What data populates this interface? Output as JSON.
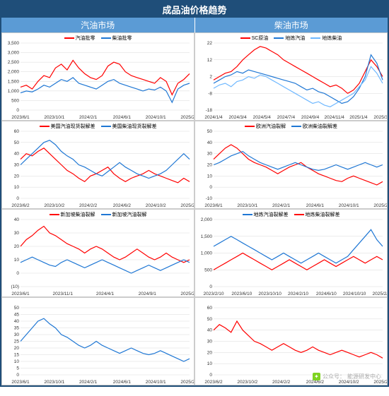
{
  "title": "成品油价格趋势",
  "left_header": "汽油市场",
  "right_header": "柴油市场",
  "colors": {
    "red": "#ff0000",
    "blue": "#1f77d4",
    "lightblue": "#6fb8ff",
    "grid": "#d9d9d9",
    "axis_text": "#333333",
    "panel_bg": "#ffffff"
  },
  "font": {
    "axis_pt": 6.5,
    "legend_pt": 7
  },
  "x_labels_a": [
    "2023/6/1",
    "2023/10/1",
    "2024/2/1",
    "2024/6/1",
    "2024/10/1",
    "2025/2/1"
  ],
  "x_labels_b": [
    "2024/1/4",
    "2024/3/4",
    "2024/5/4",
    "2024/7/4",
    "2024/9/4",
    "2024/11/4",
    "2025/1/4",
    "2025/3/4"
  ],
  "x_labels_c": [
    "2023/6/2",
    "2023/10/2",
    "2024/2/2",
    "2024/6/2",
    "2024/10/2",
    "2025/2/2"
  ],
  "x_labels_d": [
    "2023/6/1",
    "2023/10/1",
    "2024/2/1",
    "2024/6/1",
    "2024/10/1",
    "2025/2/1"
  ],
  "x_labels_e": [
    "2023/6/1",
    "2023/11/1",
    "2024/4/1",
    "2024/9/1",
    "2025/2/1"
  ],
  "x_labels_f": [
    "2023/2/10",
    "2023/6/10",
    "2023/10/10",
    "2024/2/10",
    "2024/6/10",
    "2024/10/10",
    "2025/2/10"
  ],
  "panels": [
    {
      "id": "p1",
      "ylim": [
        0,
        3500
      ],
      "ytick_step": 500,
      "x_labels_key": "x_labels_a",
      "series": [
        {
          "name": "汽油批零",
          "color_key": "red",
          "data": [
            1200,
            1300,
            1100,
            1500,
            1800,
            1700,
            2200,
            2400,
            2100,
            2600,
            2200,
            1900,
            1700,
            1600,
            1800,
            2300,
            2500,
            2400,
            2000,
            1800,
            1700,
            1600,
            1500,
            1400,
            1700,
            1500,
            800,
            1400,
            1600,
            1900
          ]
        },
        {
          "name": "柴油批零",
          "color_key": "blue",
          "data": [
            900,
            1000,
            950,
            1100,
            1300,
            1200,
            1400,
            1600,
            1500,
            1700,
            1400,
            1300,
            1200,
            1100,
            1300,
            1500,
            1600,
            1400,
            1300,
            1200,
            1100,
            1000,
            1100,
            1050,
            1200,
            1000,
            400,
            1100,
            1300,
            1400
          ]
        }
      ]
    },
    {
      "id": "p2",
      "ylim": [
        -18,
        22
      ],
      "ytick_step": 10,
      "yticks": [
        -18,
        -8,
        2,
        12,
        22
      ],
      "x_labels_key": "x_labels_b",
      "series": [
        {
          "name": "SC原油",
          "color_key": "red",
          "data": [
            0,
            2,
            4,
            5,
            8,
            12,
            15,
            18,
            20,
            19,
            17,
            15,
            12,
            10,
            8,
            6,
            4,
            2,
            0,
            -2,
            -4,
            -3,
            -5,
            -8,
            -6,
            -2,
            5,
            12,
            8,
            2
          ]
        },
        {
          "name": "地炼汽油",
          "color_key": "blue",
          "data": [
            -2,
            0,
            2,
            3,
            5,
            4,
            6,
            5,
            4,
            3,
            2,
            1,
            0,
            -1,
            -2,
            -4,
            -6,
            -5,
            -7,
            -8,
            -10,
            -12,
            -14,
            -13,
            -10,
            -5,
            2,
            15,
            10,
            0
          ]
        },
        {
          "name": "地炼柴油",
          "color_key": "lightblue",
          "data": [
            -5,
            -3,
            -2,
            -4,
            -1,
            0,
            2,
            1,
            3,
            2,
            0,
            -2,
            -4,
            -6,
            -8,
            -10,
            -12,
            -14,
            -13,
            -15,
            -16,
            -14,
            -12,
            -10,
            -8,
            -4,
            0,
            8,
            4,
            -2
          ]
        }
      ]
    },
    {
      "id": "p3",
      "ylim": [
        0,
        60
      ],
      "ytick_step": 10,
      "x_labels_key": "x_labels_c",
      "series": [
        {
          "name": "美国汽油现货裂解差",
          "color_key": "red",
          "data": [
            35,
            40,
            38,
            42,
            45,
            40,
            35,
            30,
            25,
            22,
            18,
            15,
            20,
            22,
            25,
            28,
            22,
            18,
            15,
            18,
            20,
            22,
            25,
            22,
            20,
            18,
            16,
            14,
            18,
            15
          ]
        },
        {
          "name": "美国柴油现货裂解差",
          "color_key": "blue",
          "data": [
            30,
            35,
            40,
            45,
            50,
            52,
            48,
            42,
            38,
            35,
            30,
            28,
            25,
            22,
            20,
            24,
            28,
            32,
            28,
            25,
            22,
            20,
            18,
            20,
            22,
            25,
            30,
            35,
            40,
            35
          ]
        }
      ]
    },
    {
      "id": "p4",
      "ylim": [
        -10,
        50
      ],
      "ytick_step": 10,
      "yticks": [
        -10,
        0,
        10,
        20,
        30,
        40,
        50
      ],
      "x_labels_key": "x_labels_d",
      "series": [
        {
          "name": "欧洲汽油裂解",
          "color_key": "red",
          "data": [
            25,
            30,
            35,
            38,
            35,
            30,
            25,
            22,
            20,
            18,
            15,
            12,
            15,
            18,
            20,
            22,
            18,
            15,
            12,
            10,
            8,
            6,
            5,
            8,
            10,
            8,
            6,
            4,
            2,
            5
          ]
        },
        {
          "name": "欧洲柴油裂解差",
          "color_key": "blue",
          "data": [
            20,
            22,
            25,
            28,
            30,
            32,
            28,
            25,
            22,
            20,
            18,
            16,
            18,
            20,
            22,
            20,
            18,
            16,
            15,
            16,
            18,
            20,
            18,
            16,
            18,
            20,
            22,
            20,
            18,
            20
          ]
        }
      ]
    },
    {
      "id": "p5",
      "ylim": [
        -10,
        40
      ],
      "ytick_step": 10,
      "yticks": [
        -10,
        0,
        10,
        20,
        30,
        40
      ],
      "neg_label": "(10)",
      "x_labels_key": "x_labels_e",
      "series": [
        {
          "name": "新加坡柴油裂解",
          "color_key": "red",
          "data": [
            20,
            25,
            28,
            32,
            35,
            30,
            28,
            25,
            22,
            20,
            18,
            15,
            18,
            20,
            18,
            15,
            12,
            10,
            12,
            15,
            18,
            15,
            12,
            10,
            12,
            15,
            12,
            10,
            8,
            10
          ]
        },
        {
          "name": "新加坡汽油裂解",
          "color_key": "blue",
          "data": [
            8,
            10,
            12,
            10,
            8,
            6,
            5,
            8,
            10,
            8,
            6,
            4,
            6,
            8,
            10,
            8,
            6,
            4,
            2,
            0,
            2,
            4,
            6,
            4,
            2,
            4,
            6,
            8,
            10,
            8
          ]
        }
      ]
    },
    {
      "id": "p6",
      "ylim": [
        0,
        2000
      ],
      "ytick_step": 500,
      "x_labels_key": "x_labels_f",
      "series": [
        {
          "name": "地炼汽油裂解差",
          "color_key": "blue",
          "data": [
            1200,
            1300,
            1400,
            1500,
            1400,
            1300,
            1200,
            1100,
            1000,
            900,
            800,
            900,
            1000,
            900,
            800,
            700,
            800,
            900,
            1000,
            900,
            800,
            700,
            800,
            900,
            1100,
            1300,
            1500,
            1700,
            1400,
            1200
          ]
        },
        {
          "name": "地炼柴油裂解差",
          "color_key": "red",
          "data": [
            500,
            600,
            700,
            800,
            900,
            1000,
            900,
            800,
            700,
            600,
            500,
            600,
            700,
            800,
            700,
            600,
            500,
            600,
            700,
            800,
            700,
            600,
            700,
            800,
            900,
            800,
            700,
            800,
            900,
            800
          ]
        }
      ]
    },
    {
      "id": "p7",
      "ylim": [
        0,
        50
      ],
      "ytick_step": 5,
      "x_labels_key": "x_labels_d",
      "series": [
        {
          "name": "",
          "color_key": "blue",
          "data": [
            25,
            30,
            35,
            40,
            42,
            38,
            35,
            30,
            28,
            25,
            22,
            20,
            22,
            25,
            22,
            20,
            18,
            16,
            18,
            20,
            18,
            16,
            15,
            16,
            18,
            16,
            14,
            12,
            10,
            12
          ]
        }
      ]
    },
    {
      "id": "p8",
      "ylim": [
        0,
        60
      ],
      "ytick_step": 10,
      "x_labels_key": "x_labels_c",
      "series": [
        {
          "name": "",
          "color_key": "red",
          "data": [
            40,
            45,
            42,
            38,
            48,
            40,
            35,
            30,
            28,
            25,
            22,
            25,
            28,
            25,
            22,
            20,
            22,
            25,
            22,
            20,
            18,
            20,
            22,
            20,
            18,
            16,
            18,
            20,
            18,
            15
          ]
        }
      ]
    }
  ],
  "watermark": {
    "prefix": "公众号：",
    "name": "能源研发中心"
  }
}
